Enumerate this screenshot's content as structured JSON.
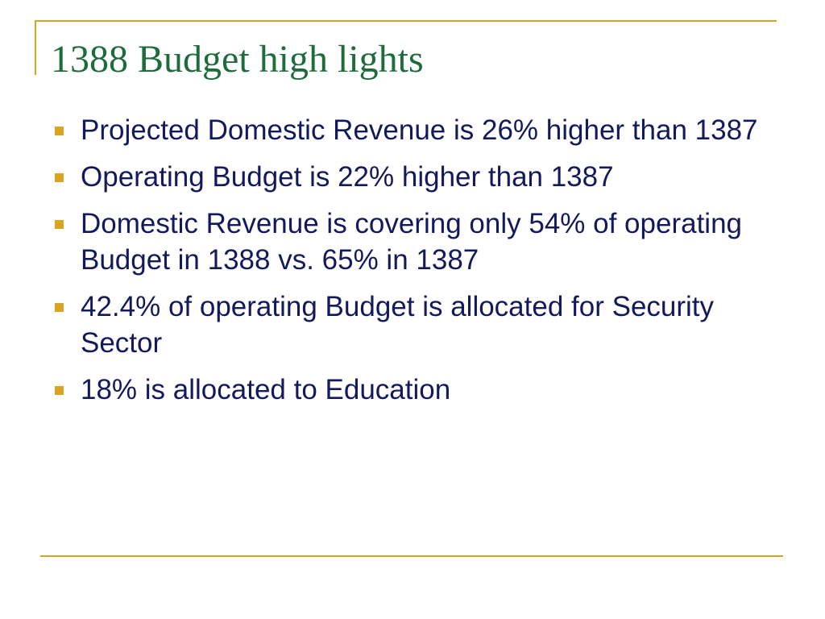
{
  "slide": {
    "title": "1388 Budget high lights",
    "bullets": [
      "Projected Domestic Revenue is 26% higher than 1387",
      "Operating Budget is 22% higher than 1387",
      "Domestic Revenue is covering only 54% of operating Budget in 1388 vs. 65% in 1387",
      "42.4% of operating Budget is allocated for Security Sector",
      "18% is allocated to Education"
    ]
  },
  "colors": {
    "accent": "#d9a520",
    "title": "#1e6b3c",
    "body_text": "#131a5c"
  }
}
